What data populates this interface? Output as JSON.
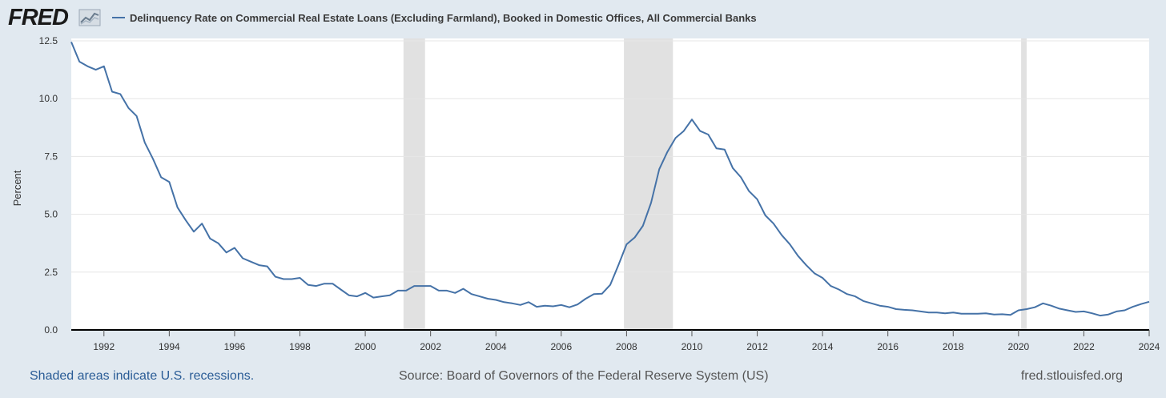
{
  "header": {
    "logo": "FRED",
    "legend_label": "Delinquency Rate on Commercial Real Estate Loans (Excluding Farmland), Booked in Domestic Offices, All Commercial Banks",
    "series_color": "#4572a7",
    "logo_icon": "chart-line-icon"
  },
  "footer": {
    "recession_note": "Shaded areas indicate U.S. recessions.",
    "source": "Source: Board of Governors of the Federal Reserve System (US)",
    "site": "fred.stlouisfed.org"
  },
  "chart_data": {
    "type": "line",
    "title": "",
    "xlabel": "",
    "ylabel": "Percent",
    "xlim": [
      1991.0,
      2024.0
    ],
    "ylim": [
      0,
      12.5
    ],
    "y_ticks": [
      0,
      2.5,
      5,
      7.5,
      10,
      12.5
    ],
    "y_tick_labels": [
      "0.0",
      "2.5",
      "5.0",
      "7.5",
      "10.0",
      "12.5"
    ],
    "x_ticks": [
      1992,
      1994,
      1996,
      1998,
      2000,
      2002,
      2004,
      2006,
      2008,
      2010,
      2012,
      2014,
      2016,
      2018,
      2020,
      2022,
      2024
    ],
    "x_tick_labels": [
      "1992",
      "1994",
      "1996",
      "1998",
      "2000",
      "2002",
      "2004",
      "2006",
      "2008",
      "2010",
      "2012",
      "2014",
      "2016",
      "2018",
      "2020",
      "2022",
      "2024"
    ],
    "grid": "horizontal",
    "recessions": [
      [
        2001.17,
        2001.83
      ],
      [
        2007.92,
        2009.42
      ],
      [
        2020.08,
        2020.25
      ]
    ],
    "series": [
      {
        "color": "#4572a7",
        "x": [
          1991.0,
          1991.25,
          1991.5,
          1991.75,
          1992.0,
          1992.25,
          1992.5,
          1992.75,
          1993.0,
          1993.25,
          1993.5,
          1993.75,
          1994.0,
          1994.25,
          1994.5,
          1994.75,
          1995.0,
          1995.25,
          1995.5,
          1995.75,
          1996.0,
          1996.25,
          1996.5,
          1996.75,
          1997.0,
          1997.25,
          1997.5,
          1997.75,
          1998.0,
          1998.25,
          1998.5,
          1998.75,
          1999.0,
          1999.25,
          1999.5,
          1999.75,
          2000.0,
          2000.25,
          2000.5,
          2000.75,
          2001.0,
          2001.25,
          2001.5,
          2001.75,
          2002.0,
          2002.25,
          2002.5,
          2002.75,
          2003.0,
          2003.25,
          2003.5,
          2003.75,
          2004.0,
          2004.25,
          2004.5,
          2004.75,
          2005.0,
          2005.25,
          2005.5,
          2005.75,
          2006.0,
          2006.25,
          2006.5,
          2006.75,
          2007.0,
          2007.25,
          2007.5,
          2007.75,
          2008.0,
          2008.25,
          2008.5,
          2008.75,
          2009.0,
          2009.25,
          2009.5,
          2009.75,
          2010.0,
          2010.25,
          2010.5,
          2010.75,
          2011.0,
          2011.25,
          2011.5,
          2011.75,
          2012.0,
          2012.25,
          2012.5,
          2012.75,
          2013.0,
          2013.25,
          2013.5,
          2013.75,
          2014.0,
          2014.25,
          2014.5,
          2014.75,
          2015.0,
          2015.25,
          2015.5,
          2015.75,
          2016.0,
          2016.25,
          2016.5,
          2016.75,
          2017.0,
          2017.25,
          2017.5,
          2017.75,
          2018.0,
          2018.25,
          2018.5,
          2018.75,
          2019.0,
          2019.25,
          2019.5,
          2019.75,
          2020.0,
          2020.25,
          2020.5,
          2020.75,
          2021.0,
          2021.25,
          2021.5,
          2021.75,
          2022.0,
          2022.25,
          2022.5,
          2022.75,
          2023.0,
          2023.25,
          2023.5,
          2023.75,
          2024.0
        ],
        "values": [
          12.45,
          11.6,
          11.4,
          11.25,
          11.4,
          10.3,
          10.2,
          9.6,
          9.25,
          8.1,
          7.4,
          6.6,
          6.4,
          5.3,
          4.75,
          4.25,
          4.6,
          3.95,
          3.75,
          3.35,
          3.55,
          3.1,
          2.95,
          2.8,
          2.75,
          2.3,
          2.2,
          2.2,
          2.25,
          1.95,
          1.9,
          2.0,
          2.0,
          1.75,
          1.5,
          1.45,
          1.6,
          1.4,
          1.45,
          1.5,
          1.7,
          1.7,
          1.9,
          1.9,
          1.9,
          1.7,
          1.7,
          1.6,
          1.78,
          1.55,
          1.45,
          1.35,
          1.3,
          1.2,
          1.15,
          1.08,
          1.2,
          1.0,
          1.05,
          1.02,
          1.08,
          0.98,
          1.1,
          1.35,
          1.55,
          1.57,
          1.95,
          2.8,
          3.7,
          4.0,
          4.5,
          5.5,
          6.95,
          7.7,
          8.3,
          8.6,
          9.1,
          8.6,
          8.45,
          7.85,
          7.8,
          7.0,
          6.6,
          6.0,
          5.65,
          4.95,
          4.6,
          4.1,
          3.7,
          3.2,
          2.8,
          2.45,
          2.25,
          1.9,
          1.75,
          1.55,
          1.45,
          1.25,
          1.15,
          1.05,
          1.0,
          0.9,
          0.87,
          0.85,
          0.8,
          0.75,
          0.75,
          0.72,
          0.75,
          0.7,
          0.7,
          0.7,
          0.72,
          0.67,
          0.68,
          0.65,
          0.85,
          0.9,
          0.98,
          1.15,
          1.05,
          0.92,
          0.85,
          0.78,
          0.8,
          0.72,
          0.62,
          0.67,
          0.8,
          0.85,
          1.0,
          1.12,
          1.22
        ]
      }
    ]
  }
}
